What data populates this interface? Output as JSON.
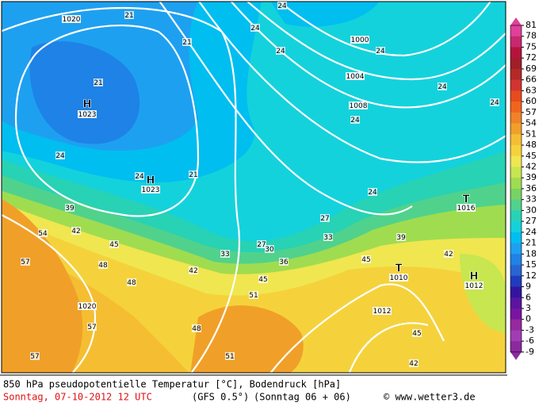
{
  "map": {
    "labels": [
      "H",
      "1023",
      "H",
      "1023",
      "T",
      "1016",
      "T",
      "1010",
      "H",
      "1012",
      "1020",
      "1000",
      "1004",
      "1008",
      "1020",
      "1012",
      "21",
      "21",
      "21",
      "21",
      "24",
      "24",
      "24",
      "24",
      "24",
      "24",
      "24",
      "24",
      "24",
      "24",
      "27",
      "27",
      "30",
      "33",
      "33",
      "36",
      "39",
      "39",
      "42",
      "42",
      "42",
      "45",
      "45",
      "45",
      "48",
      "48",
      "48",
      "51",
      "51",
      "54",
      "57",
      "57",
      "57",
      "42",
      "45"
    ]
  },
  "colorbar": {
    "levels": [
      81,
      78,
      75,
      72,
      69,
      66,
      63,
      60,
      57,
      54,
      51,
      48,
      45,
      42,
      39,
      36,
      33,
      30,
      27,
      24,
      21,
      18,
      15,
      12,
      9,
      6,
      3,
      0,
      -3,
      -6,
      -9
    ],
    "colors": [
      "#e0409a",
      "#c8286e",
      "#b4143c",
      "#a01e28",
      "#b42828",
      "#d23232",
      "#e64b1e",
      "#f0641e",
      "#f08228",
      "#f0a028",
      "#f5be32",
      "#f5d23c",
      "#f0e650",
      "#c8e650",
      "#a0dc50",
      "#78d264",
      "#50d28c",
      "#28d2b4",
      "#14d2dc",
      "#00bef0",
      "#1ea0f0",
      "#1e82e6",
      "#2864d2",
      "#1e3cbe",
      "#3214a0",
      "#5a14a0",
      "#7814a0",
      "#9628a0",
      "#a03cb4",
      "#8c28a0"
    ]
  },
  "footer": {
    "line1": "850 hPa pseudopotentielle Temperatur [°C], Bodendruck [hPa]",
    "date": "Sonntag, 07-10-2012  12 UTC",
    "model": "(GFS 0.5°)",
    "run": "(Sonntag 06 + 06)",
    "credit": "© www.wetter3.de"
  }
}
